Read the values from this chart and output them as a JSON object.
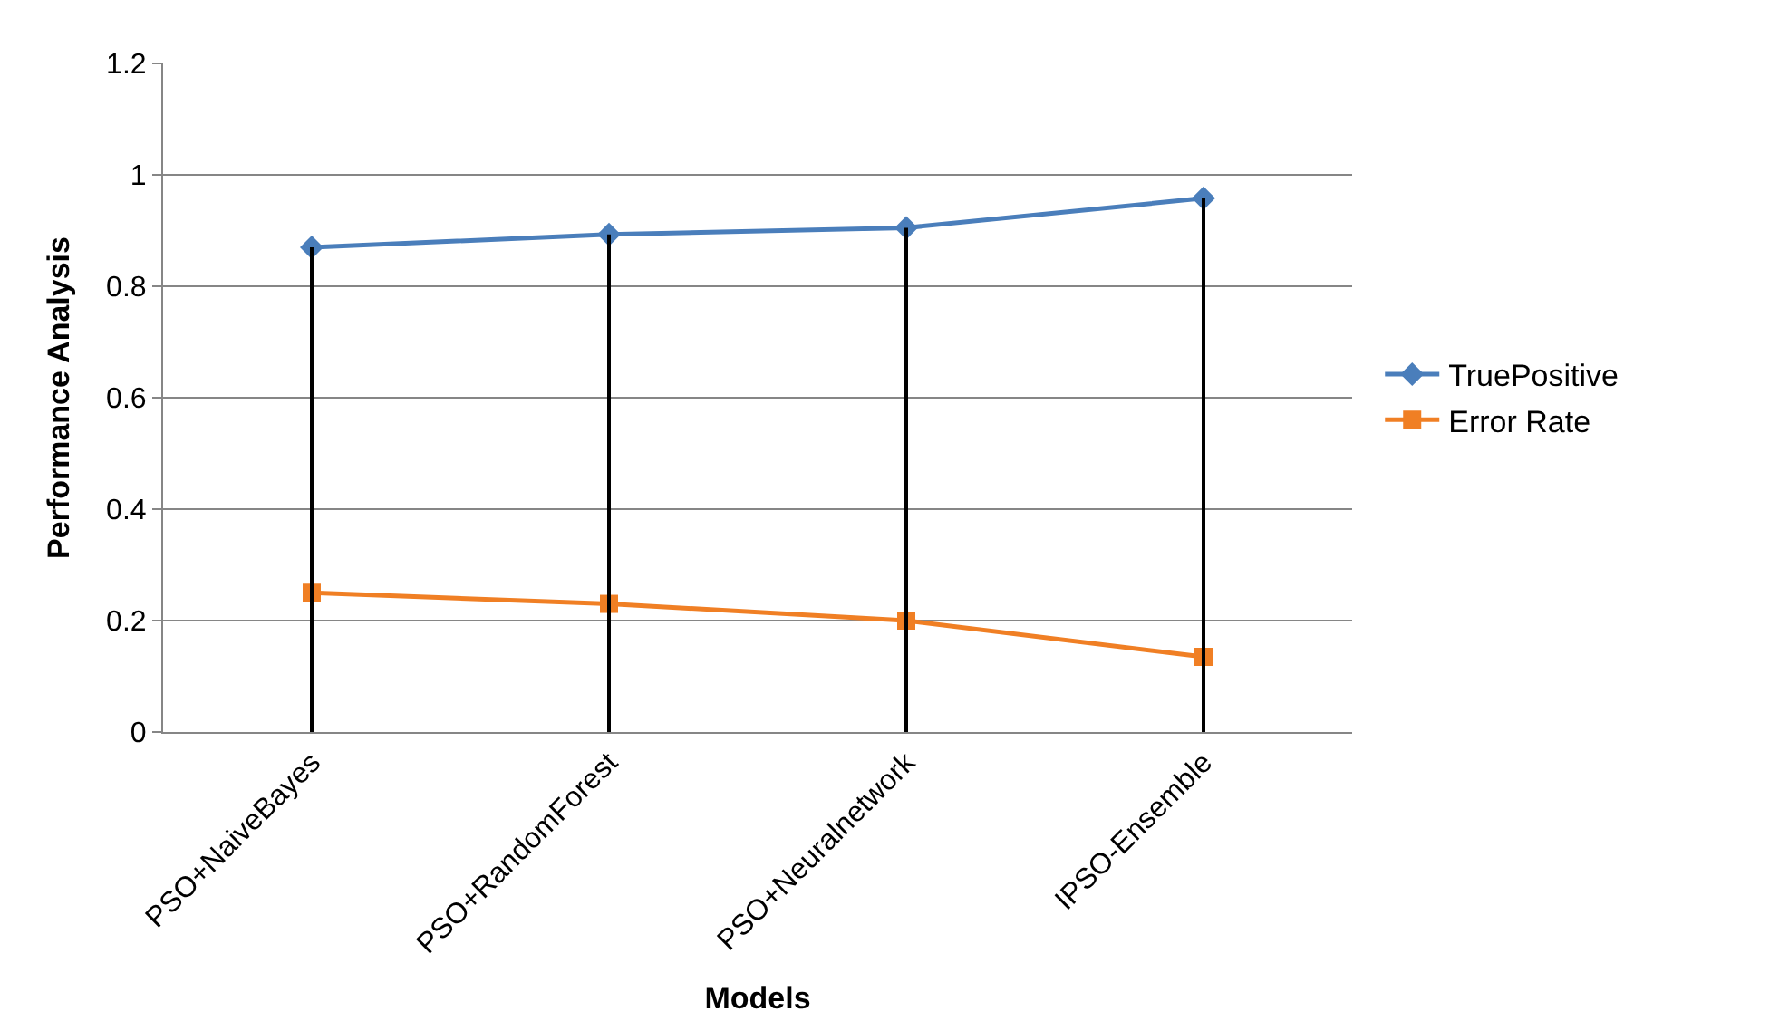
{
  "chart_data": {
    "type": "line",
    "xlabel": "Models",
    "ylabel": "Performance Analysis",
    "categories": [
      "PSO+NaiveBayes",
      "PSO+RandomForest",
      "PSO+Neuralnetwork",
      "IPSO-Ensemble"
    ],
    "series": [
      {
        "type": "bar",
        "color": "#000000",
        "values": [
          0.87,
          0.893,
          0.905,
          0.958
        ]
      },
      {
        "name": "TruePositive",
        "color": "#4a7ebb",
        "values": [
          0.87,
          0.893,
          0.905,
          0.958
        ],
        "marker": "diamond"
      },
      {
        "name": "Error Rate",
        "color": "#f07f24",
        "values": [
          0.25,
          0.23,
          0.2,
          0.135
        ],
        "marker": "square"
      }
    ],
    "ylim": [
      0,
      1.2
    ],
    "yticks": [
      0,
      0.2,
      0.4,
      0.6,
      0.8,
      1,
      1.2
    ],
    "grid": "y",
    "legend": "right"
  }
}
